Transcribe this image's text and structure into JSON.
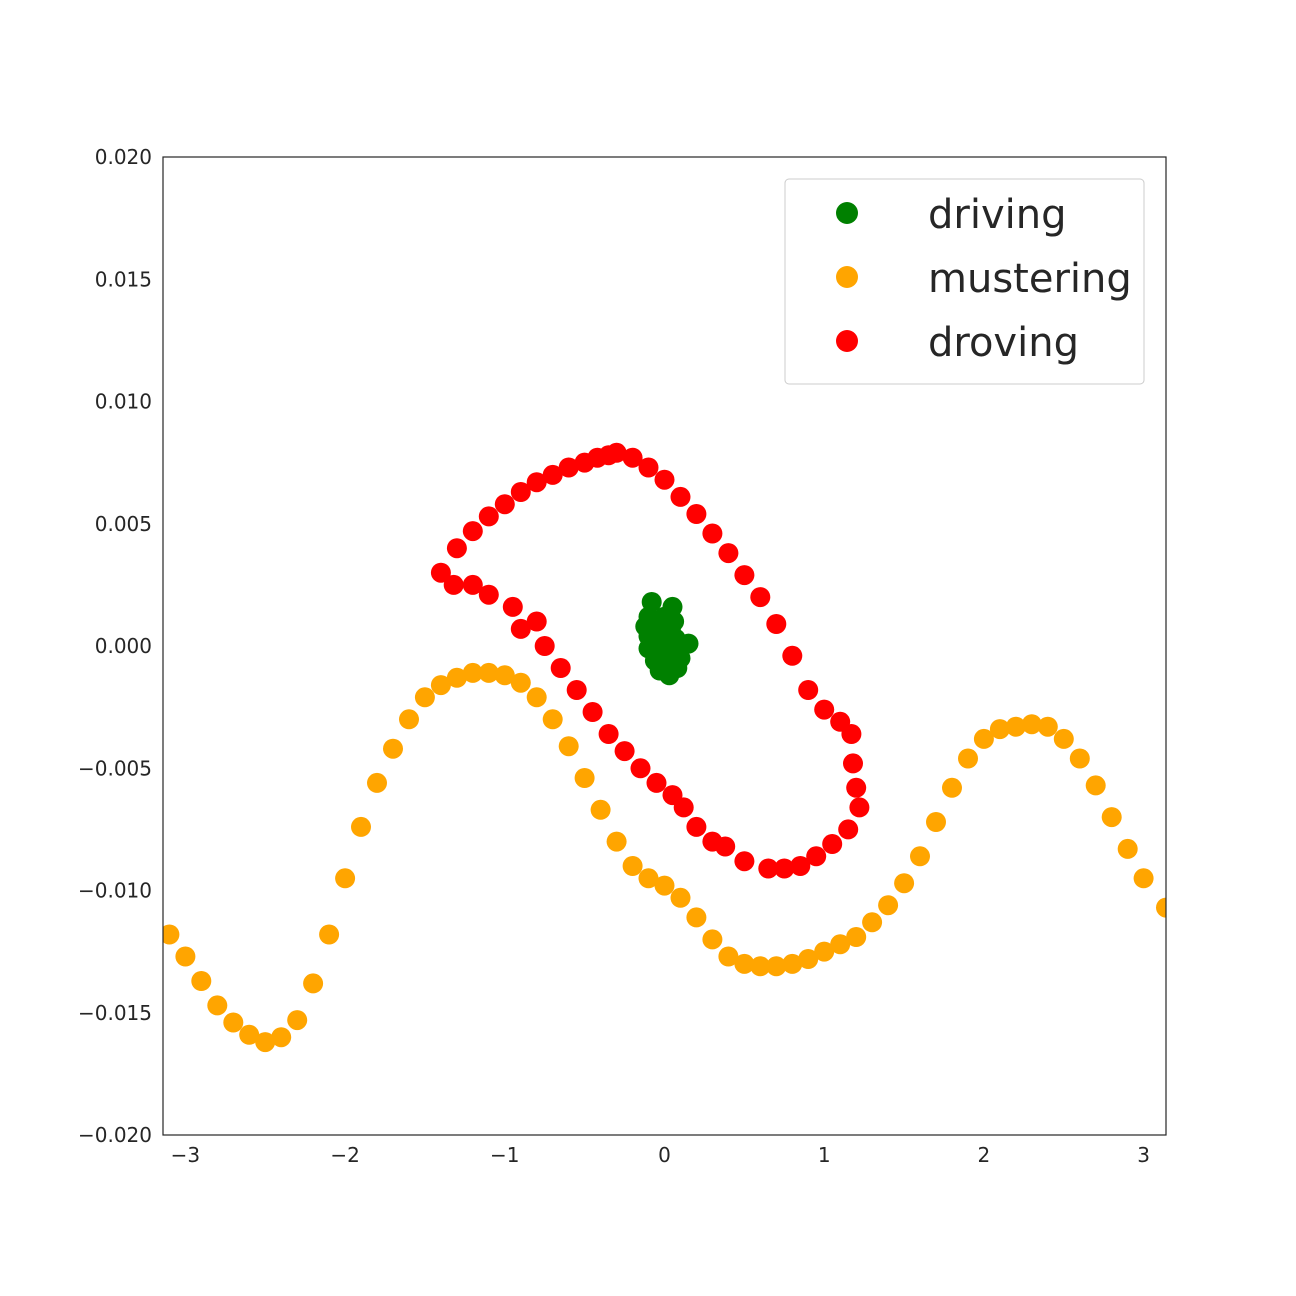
{
  "chart_data": {
    "type": "scatter",
    "title": "",
    "xlabel": "",
    "ylabel": "",
    "xlim": [
      -3.14,
      3.14
    ],
    "ylim": [
      -0.02,
      0.02
    ],
    "xticks": [
      -3,
      -2,
      -1,
      0,
      1,
      2,
      3
    ],
    "xtick_labels": [
      "−3",
      "−2",
      "−1",
      "0",
      "1",
      "2",
      "3"
    ],
    "yticks": [
      0.02,
      0.015,
      0.01,
      0.005,
      0.0,
      -0.005,
      -0.01,
      -0.015,
      -0.02
    ],
    "ytick_labels": [
      "0.020",
      "0.015",
      "0.010",
      "0.005",
      "0.000",
      "−0.005",
      "−0.010",
      "−0.015",
      "−0.020"
    ],
    "grid": false,
    "legend_position": "top-right",
    "series": [
      {
        "name": "driving",
        "color": "#008000",
        "points": [
          [
            -0.08,
            0.0018
          ],
          [
            0.05,
            0.0016
          ],
          [
            -0.1,
            0.0012
          ],
          [
            0.0,
            0.0012
          ],
          [
            0.06,
            0.001
          ],
          [
            -0.12,
            0.0008
          ],
          [
            -0.04,
            0.0008
          ],
          [
            0.04,
            0.0007
          ],
          [
            -0.1,
            0.0004
          ],
          [
            -0.02,
            0.0004
          ],
          [
            0.07,
            0.0003
          ],
          [
            -0.06,
            0.0001
          ],
          [
            0.02,
            0.0001
          ],
          [
            0.15,
            0.0001
          ],
          [
            -0.1,
            -0.0001
          ],
          [
            0.09,
            -0.0002
          ],
          [
            -0.02,
            -0.0003
          ],
          [
            0.05,
            -0.0005
          ],
          [
            -0.06,
            -0.0006
          ],
          [
            0.1,
            -0.0005
          ],
          [
            0.0,
            -0.0008
          ],
          [
            -0.03,
            -0.001
          ],
          [
            0.08,
            -0.0009
          ],
          [
            0.03,
            -0.0012
          ],
          [
            0.05,
            -0.0009
          ]
        ]
      },
      {
        "name": "mustering",
        "color": "#FFA500",
        "points": [
          [
            -3.1,
            -0.0118
          ],
          [
            -3.0,
            -0.0127
          ],
          [
            -2.9,
            -0.0137
          ],
          [
            -2.8,
            -0.0147
          ],
          [
            -2.7,
            -0.0154
          ],
          [
            -2.6,
            -0.0159
          ],
          [
            -2.5,
            -0.0162
          ],
          [
            -2.4,
            -0.016
          ],
          [
            -2.3,
            -0.0153
          ],
          [
            -2.2,
            -0.0138
          ],
          [
            -2.1,
            -0.0118
          ],
          [
            -2.0,
            -0.0095
          ],
          [
            -1.9,
            -0.0074
          ],
          [
            -1.8,
            -0.0056
          ],
          [
            -1.7,
            -0.0042
          ],
          [
            -1.6,
            -0.003
          ],
          [
            -1.5,
            -0.0021
          ],
          [
            -1.4,
            -0.0016
          ],
          [
            -1.3,
            -0.0013
          ],
          [
            -1.2,
            -0.0011
          ],
          [
            -1.1,
            -0.0011
          ],
          [
            -1.0,
            -0.0012
          ],
          [
            -0.9,
            -0.0015
          ],
          [
            -0.8,
            -0.0021
          ],
          [
            -0.7,
            -0.003
          ],
          [
            -0.6,
            -0.0041
          ],
          [
            -0.5,
            -0.0054
          ],
          [
            -0.4,
            -0.0067
          ],
          [
            -0.3,
            -0.008
          ],
          [
            -0.2,
            -0.009
          ],
          [
            -0.1,
            -0.0095
          ],
          [
            0.0,
            -0.0098
          ],
          [
            0.1,
            -0.0103
          ],
          [
            0.2,
            -0.0111
          ],
          [
            0.3,
            -0.012
          ],
          [
            0.4,
            -0.0127
          ],
          [
            0.5,
            -0.013
          ],
          [
            0.6,
            -0.0131
          ],
          [
            0.7,
            -0.0131
          ],
          [
            0.8,
            -0.013
          ],
          [
            0.9,
            -0.0128
          ],
          [
            1.0,
            -0.0125
          ],
          [
            1.1,
            -0.0122
          ],
          [
            1.2,
            -0.0119
          ],
          [
            1.3,
            -0.0113
          ],
          [
            1.4,
            -0.0106
          ],
          [
            1.5,
            -0.0097
          ],
          [
            1.6,
            -0.0086
          ],
          [
            1.7,
            -0.0072
          ],
          [
            1.8,
            -0.0058
          ],
          [
            1.9,
            -0.0046
          ],
          [
            2.0,
            -0.0038
          ],
          [
            2.1,
            -0.0034
          ],
          [
            2.2,
            -0.0033
          ],
          [
            2.3,
            -0.0032
          ],
          [
            2.4,
            -0.0033
          ],
          [
            2.5,
            -0.0038
          ],
          [
            2.6,
            -0.0046
          ],
          [
            2.7,
            -0.0057
          ],
          [
            2.8,
            -0.007
          ],
          [
            2.9,
            -0.0083
          ],
          [
            3.0,
            -0.0095
          ],
          [
            3.14,
            -0.0107
          ]
        ]
      },
      {
        "name": "droving",
        "color": "#FF0000",
        "points": [
          [
            -0.3,
            0.0079
          ],
          [
            -0.2,
            0.0077
          ],
          [
            -0.1,
            0.0073
          ],
          [
            0.0,
            0.0068
          ],
          [
            0.1,
            0.0061
          ],
          [
            0.2,
            0.0054
          ],
          [
            0.3,
            0.0046
          ],
          [
            0.4,
            0.0038
          ],
          [
            0.5,
            0.0029
          ],
          [
            0.6,
            0.002
          ],
          [
            0.7,
            0.0009
          ],
          [
            0.8,
            -0.0004
          ],
          [
            0.9,
            -0.0018
          ],
          [
            1.0,
            -0.0026
          ],
          [
            1.1,
            -0.0031
          ],
          [
            1.17,
            -0.0036
          ],
          [
            1.18,
            -0.0048
          ],
          [
            1.2,
            -0.0058
          ],
          [
            1.22,
            -0.0066
          ],
          [
            1.15,
            -0.0075
          ],
          [
            1.05,
            -0.0081
          ],
          [
            0.95,
            -0.0086
          ],
          [
            0.85,
            -0.009
          ],
          [
            0.75,
            -0.0091
          ],
          [
            0.65,
            -0.0091
          ],
          [
            0.5,
            -0.0088
          ],
          [
            0.38,
            -0.0082
          ],
          [
            0.3,
            -0.008
          ],
          [
            0.2,
            -0.0074
          ],
          [
            0.12,
            -0.0066
          ],
          [
            0.05,
            -0.0061
          ],
          [
            -0.05,
            -0.0056
          ],
          [
            -0.15,
            -0.005
          ],
          [
            -0.25,
            -0.0043
          ],
          [
            -0.35,
            -0.0036
          ],
          [
            -0.45,
            -0.0027
          ],
          [
            -0.55,
            -0.0018
          ],
          [
            -0.65,
            -0.0009
          ],
          [
            -0.75,
            0.0
          ],
          [
            -0.9,
            0.0007
          ],
          [
            -0.8,
            0.001
          ],
          [
            -0.95,
            0.0016
          ],
          [
            -1.1,
            0.0021
          ],
          [
            -1.2,
            0.0025
          ],
          [
            -1.32,
            0.0025
          ],
          [
            -1.4,
            0.003
          ],
          [
            -1.3,
            0.004
          ],
          [
            -1.2,
            0.0047
          ],
          [
            -1.1,
            0.0053
          ],
          [
            -1.0,
            0.0058
          ],
          [
            -0.9,
            0.0063
          ],
          [
            -0.8,
            0.0067
          ],
          [
            -0.7,
            0.007
          ],
          [
            -0.6,
            0.0073
          ],
          [
            -0.5,
            0.0075
          ],
          [
            -0.42,
            0.0077
          ],
          [
            -0.35,
            0.0078
          ]
        ]
      }
    ]
  },
  "legend": {
    "items": [
      {
        "label": "driving",
        "color": "#008000"
      },
      {
        "label": "mustering",
        "color": "#FFA500"
      },
      {
        "label": "droving",
        "color": "#FF0000"
      }
    ]
  }
}
